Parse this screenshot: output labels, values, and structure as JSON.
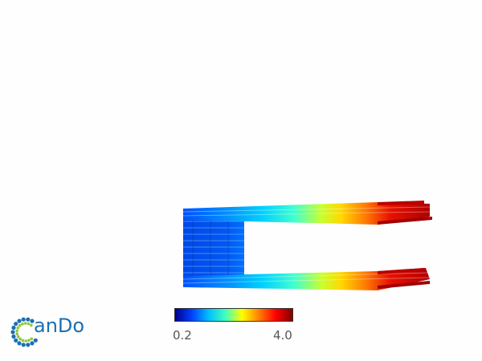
{
  "colorbar": {
    "min_label": "0.2",
    "max_label": "4.0",
    "min": 0.2,
    "max": 4.0,
    "colormap": [
      "#00008f",
      "#0040ff",
      "#00c0ff",
      "#40ffbf",
      "#ffff00",
      "#ff8000",
      "#ff0000",
      "#800000"
    ]
  },
  "logo": {
    "text": "anDo",
    "ring_color": "#1b6fb3",
    "dot_color": "#8dc63f"
  },
  "background_color": "#fefefe"
}
